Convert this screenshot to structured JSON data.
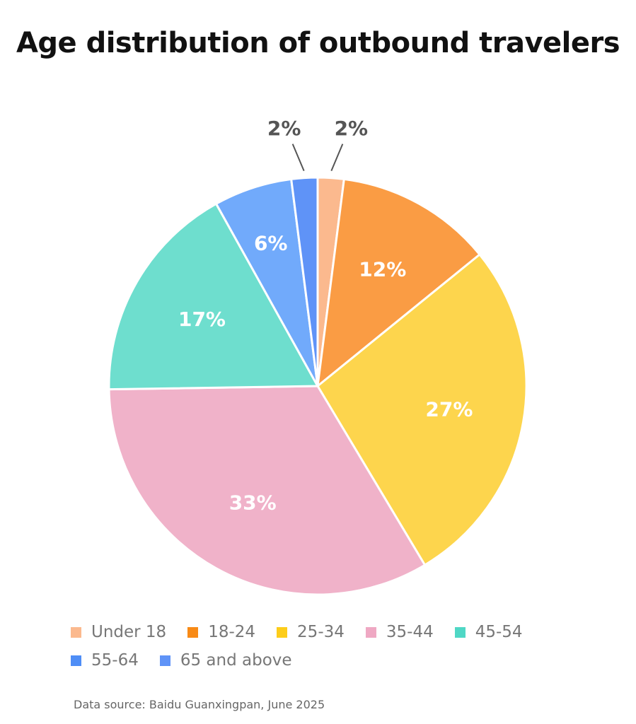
{
  "title": "Age distribution of outbound travelers",
  "chart_data": {
    "type": "pie",
    "title": "Age distribution of outbound travelers",
    "unit": "%",
    "slices": [
      {
        "label": "Under 18",
        "value": 2,
        "display": "2%",
        "color": "#FBB98E",
        "swatch": "#FBB98E",
        "label_color": "#555555",
        "outside": true
      },
      {
        "label": "18-24",
        "value": 12,
        "display": "12%",
        "color": "#FA9C44",
        "swatch": "#F88A16",
        "label_color": "#ffffff",
        "outside": false
      },
      {
        "label": "25-34",
        "value": 27,
        "display": "27%",
        "color": "#FDD54D",
        "swatch": "#FDCD1A",
        "label_color": "#ffffff",
        "outside": false
      },
      {
        "label": "35-44",
        "value": 33,
        "display": "33%",
        "color": "#F0B2C9",
        "swatch": "#EFA8C3",
        "label_color": "#ffffff",
        "outside": false
      },
      {
        "label": "45-54",
        "value": 17,
        "display": "17%",
        "color": "#6EDECE",
        "swatch": "#4FD7C5",
        "label_color": "#ffffff",
        "outside": false
      },
      {
        "label": "55-64",
        "value": 6,
        "display": "6%",
        "color": "#71AAFB",
        "swatch": "#4F8EF6",
        "label_color": "#ffffff",
        "outside": false
      },
      {
        "label": "65 and above",
        "value": 2,
        "display": "2%",
        "color": "#5F93F7",
        "swatch": "#5F93F7",
        "label_color": "#555555",
        "outside": true
      }
    ],
    "legend_position": "bottom-left"
  },
  "source": "Data source: Baidu Guanxingpan, June 2025"
}
